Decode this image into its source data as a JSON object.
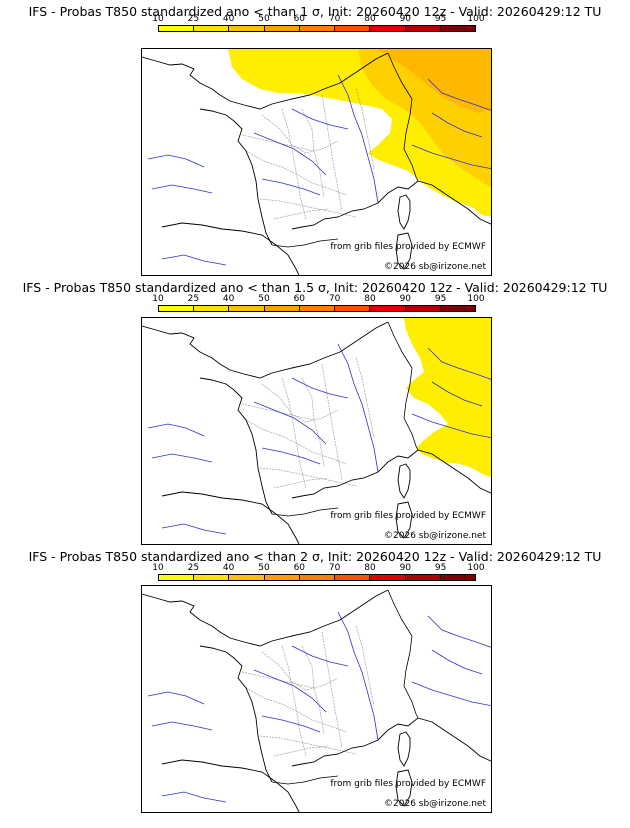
{
  "legend": {
    "labels": [
      "10",
      "25",
      "40",
      "50",
      "60",
      "70",
      "80",
      "90",
      "95",
      "100"
    ],
    "colors": [
      "#ffff00",
      "#ffe000",
      "#ffc000",
      "#ffa000",
      "#ff8000",
      "#ff5000",
      "#e00000",
      "#b00000",
      "#800000"
    ]
  },
  "colors": {
    "land_border": "#000000",
    "region_border": "#a0a0a0",
    "river": "#3030d0",
    "yellow": "#ffee00",
    "orange_light": "#ffd000",
    "orange": "#ffb800"
  },
  "panels": [
    {
      "title": "IFS - Probas T850  standardized ano < than 1 σ, Init: 20260420 12z - Valid: 20260429:12 TU",
      "credit_grib": "from grib files provided by ECMWF",
      "credit_copy": "©2026 sb@irizone.net",
      "threshold_sigma": 1
    },
    {
      "title": "IFS - Probas T850  standardized ano < than 1.5 σ, Init: 20260420 12z - Valid: 20260429:12 TU",
      "credit_grib": "from grib files provided by ECMWF",
      "credit_copy": "©2026 sb@irizone.net",
      "threshold_sigma": 1.5
    },
    {
      "title": "IFS - Probas T850  standardized ano < than 2 σ, Init: 20260420 12z - Valid: 20260429:12 TU",
      "credit_grib": "from grib files provided by ECMWF",
      "credit_copy": "©2026 sb@irizone.net",
      "threshold_sigma": 2
    }
  ]
}
